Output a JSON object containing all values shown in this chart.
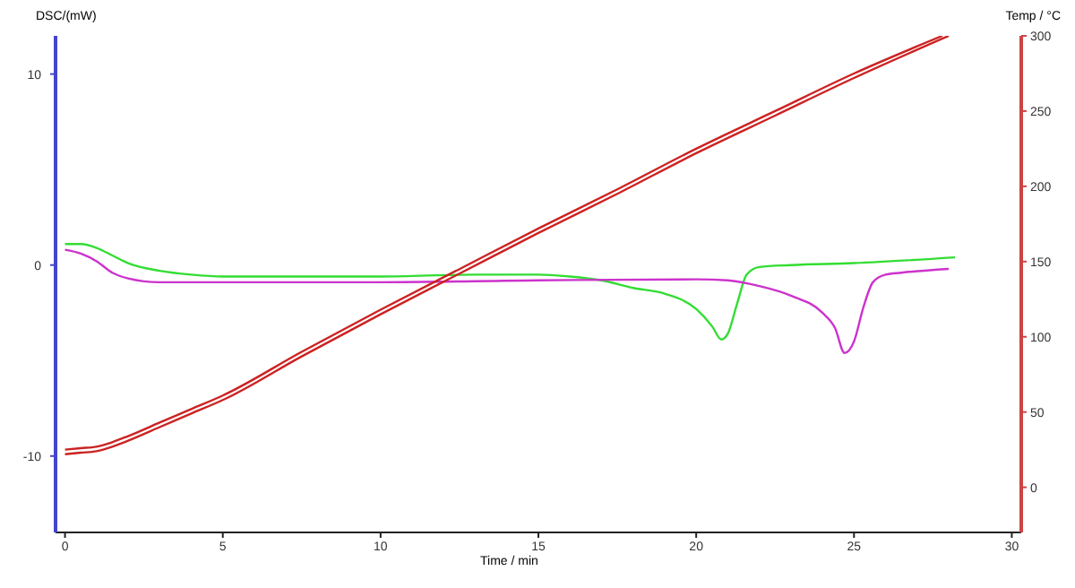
{
  "chart_data": {
    "type": "line",
    "xlabel": "Time / min",
    "ylabel": "DSC/(mW)",
    "y2label": "Temp / °C",
    "xlim": [
      -0.3,
      30.3
    ],
    "xticks": [
      0,
      5,
      10,
      15,
      20,
      25,
      30
    ],
    "ylim": [
      -14,
      12
    ],
    "yticks": [
      -10,
      0,
      10
    ],
    "y2lim": [
      -30,
      300
    ],
    "y2ticks": [
      0,
      50,
      100,
      150,
      200,
      250,
      300
    ],
    "marker": "none",
    "line_style": "solid",
    "series": [
      {
        "color": "#33dd33",
        "x": [
          0,
          0.5,
          1,
          1.5,
          2,
          3,
          4,
          5,
          7,
          10,
          13,
          15,
          16,
          17,
          18,
          19,
          20,
          20.5,
          20.8,
          21,
          21.3,
          21.6,
          22,
          23,
          25,
          28.2
        ],
        "values": [
          1.1,
          1.1,
          0.9,
          0.5,
          0.1,
          -0.3,
          -0.5,
          -0.6,
          -0.6,
          -0.6,
          -0.5,
          -0.5,
          -0.6,
          -0.8,
          -1.2,
          -1.5,
          -2.3,
          -3.2,
          -3.9,
          -3.6,
          -2,
          -0.5,
          -0.1,
          0,
          0.1,
          0.4
        ]
      },
      {
        "color": "#cc33cc",
        "x": [
          0,
          0.5,
          1,
          1.5,
          2,
          3,
          5,
          10,
          15,
          20,
          21,
          22,
          23,
          24,
          24.4,
          24.7,
          25,
          25.3,
          25.6,
          26,
          26.5,
          28
        ],
        "values": [
          0.8,
          0.6,
          0.2,
          -0.4,
          -0.7,
          -0.9,
          -0.9,
          -0.9,
          -0.8,
          -0.75,
          -0.8,
          -1.1,
          -1.6,
          -2.5,
          -3.3,
          -4.6,
          -4.0,
          -2.2,
          -0.9,
          -0.5,
          -0.4,
          -0.2
        ]
      },
      {
        "color": "#cc2222",
        "axis": "y2",
        "x": [
          0,
          0.5,
          1,
          1.5,
          2,
          3,
          4,
          5,
          7.5,
          10,
          12.5,
          15,
          17.5,
          20,
          22.5,
          25,
          27.8
        ],
        "values": [
          25,
          26,
          27,
          30,
          34,
          43,
          52,
          61,
          90,
          118,
          145,
          172,
          198,
          225,
          250,
          275,
          300
        ]
      },
      {
        "color": "#cc2222",
        "axis": "y2",
        "x": [
          0,
          0.5,
          1,
          1.5,
          2,
          3,
          4,
          5,
          7.5,
          10,
          12.5,
          15,
          17.5,
          20,
          22.5,
          25,
          28
        ],
        "values": [
          22,
          23,
          24,
          27,
          31,
          40,
          49,
          58,
          87,
          115,
          142,
          169,
          195,
          222,
          247,
          272,
          300
        ]
      }
    ]
  }
}
